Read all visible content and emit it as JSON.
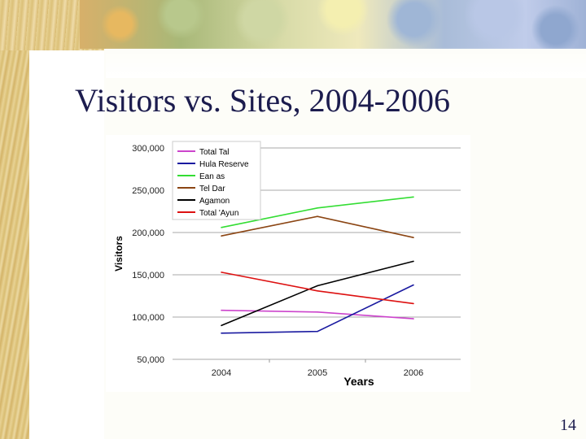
{
  "slide": {
    "title": "Visitors vs. Sites, 2004-2006",
    "page_number": "14"
  },
  "chart_data": {
    "type": "line",
    "title": "",
    "xlabel": "Years",
    "ylabel": "Visitors",
    "x": [
      "2004",
      "2005",
      "2006"
    ],
    "y_ticks": [
      "50,000",
      "100,000",
      "150,000",
      "200,000",
      "250,000",
      "300,000"
    ],
    "ylim": [
      50000,
      300000
    ],
    "grid": true,
    "legend_position": "top-left",
    "series": [
      {
        "name": "Total Tal",
        "color": "#cc44cc",
        "values": [
          108000,
          106000,
          98000
        ]
      },
      {
        "name": "Hula Reserve",
        "color": "#1a1aa0",
        "values": [
          81000,
          83000,
          138000
        ]
      },
      {
        "name": "Ean as",
        "color": "#33dd33",
        "values": [
          206000,
          229000,
          242000
        ]
      },
      {
        "name": "Tel Dar",
        "color": "#8b4513",
        "values": [
          196000,
          219000,
          194000
        ]
      },
      {
        "name": "Agamon",
        "color": "#000000",
        "values": [
          90000,
          137000,
          166000
        ]
      },
      {
        "name": "Total 'Ayun",
        "color": "#dd1111",
        "values": [
          153000,
          131000,
          116000
        ]
      }
    ]
  }
}
